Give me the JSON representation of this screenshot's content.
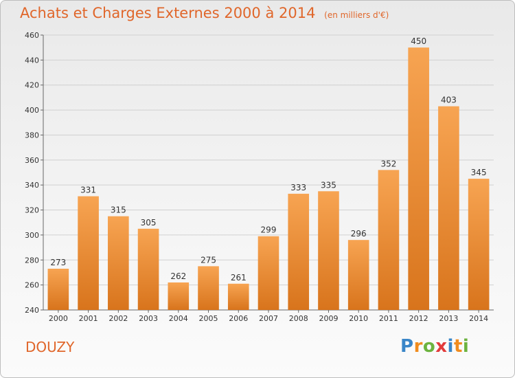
{
  "title": "Achats et Charges Externes 2000 à 2014",
  "subtitle": "(en milliers d'€)",
  "commune": "DOUZY",
  "logo": {
    "text": "Proxiti",
    "letters": [
      {
        "ch": "P",
        "color": "#3a86c8"
      },
      {
        "ch": "r",
        "color": "#f08c1e"
      },
      {
        "ch": "o",
        "color": "#6cb33f"
      },
      {
        "ch": "x",
        "color": "#e23b3b"
      },
      {
        "ch": "i",
        "color": "#3a86c8"
      },
      {
        "ch": "t",
        "color": "#f08c1e"
      },
      {
        "ch": "i",
        "color": "#6cb33f"
      }
    ]
  },
  "colors": {
    "title": "#e0662a",
    "bar_top": "#f7a452",
    "bar_bottom": "#d8741c",
    "grid": "#d0d0d0",
    "axis": "#666666"
  },
  "chart_data": {
    "type": "bar",
    "categories": [
      "2000",
      "2001",
      "2002",
      "2003",
      "2004",
      "2005",
      "2006",
      "2007",
      "2008",
      "2009",
      "2010",
      "2011",
      "2012",
      "2013",
      "2014"
    ],
    "values": [
      273,
      331,
      315,
      305,
      262,
      275,
      261,
      299,
      333,
      335,
      296,
      352,
      450,
      403,
      345
    ],
    "ylim": [
      240,
      460
    ],
    "yticks": [
      240,
      260,
      280,
      300,
      320,
      340,
      360,
      380,
      400,
      420,
      440,
      460
    ],
    "grid": true,
    "data_labels": true
  }
}
